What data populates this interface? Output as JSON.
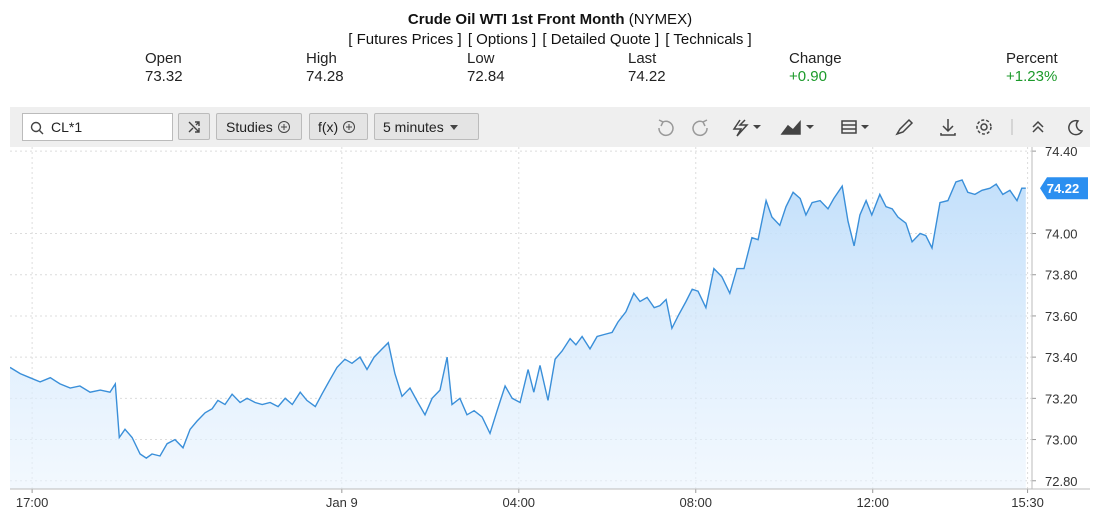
{
  "header": {
    "title": "Crude Oil WTI 1st Front Month",
    "exchange": "(NYMEX)",
    "links": [
      "[ Futures Prices ]",
      "[ Options ]",
      "[ Detailed Quote ]",
      "[ Technicals ]"
    ]
  },
  "quote": [
    {
      "label": "Open",
      "value": "73.32"
    },
    {
      "label": "High",
      "value": "74.28"
    },
    {
      "label": "Low",
      "value": "72.84"
    },
    {
      "label": "Last",
      "value": "74.22"
    },
    {
      "label": "Change",
      "value": "+0.90"
    },
    {
      "label": "Percent",
      "value": "+1.23%"
    }
  ],
  "toolbar": {
    "symbol": "CL*1",
    "studies": "Studies",
    "functions": "f(x)",
    "interval": "5 minutes"
  },
  "chart_data": {
    "type": "line",
    "color": "#3a8fd9",
    "grid": true,
    "xlim": [
      -0.5,
      22.6
    ],
    "ylim": [
      72.76,
      74.42
    ],
    "xticks": [
      {
        "value": 0,
        "label": "17:00"
      },
      {
        "value": 7,
        "label": "Jan 9"
      },
      {
        "value": 11,
        "label": "04:00"
      },
      {
        "value": 15,
        "label": "08:00"
      },
      {
        "value": 19,
        "label": "12:00"
      },
      {
        "value": 22.5,
        "label": "15:30"
      }
    ],
    "yticks": [
      {
        "value": 72.8,
        "label": "72.80"
      },
      {
        "value": 73,
        "label": "73.00"
      },
      {
        "value": 73.2,
        "label": "73.20"
      },
      {
        "value": 73.4,
        "label": "73.40"
      },
      {
        "value": 73.6,
        "label": "73.60"
      },
      {
        "value": 73.8,
        "label": "73.80"
      },
      {
        "value": 74,
        "label": "74.00"
      },
      {
        "value": 74.4,
        "label": "74.40"
      }
    ],
    "x": [
      -0.5,
      -0.27,
      -0.05,
      0.18,
      0.41,
      0.63,
      0.86,
      1.08,
      1.31,
      1.54,
      1.76,
      1.88,
      1.97,
      2.1,
      2.26,
      2.44,
      2.58,
      2.71,
      2.89,
      3.05,
      3.23,
      3.41,
      3.57,
      3.73,
      3.91,
      4.07,
      4.2,
      4.36,
      4.52,
      4.7,
      4.86,
      5.04,
      5.2,
      5.38,
      5.56,
      5.72,
      5.88,
      6.06,
      6.21,
      6.4,
      6.55,
      6.73,
      6.89,
      7.07,
      7.23,
      7.41,
      7.57,
      7.73,
      7.91,
      8.05,
      8.2,
      8.36,
      8.54,
      8.72,
      8.88,
      9.04,
      9.22,
      9.38,
      9.49,
      9.67,
      9.83,
      9.99,
      10.17,
      10.35,
      10.51,
      10.69,
      10.85,
      11.03,
      11.21,
      11.34,
      11.48,
      11.66,
      11.82,
      11.98,
      12.16,
      12.29,
      12.43,
      12.61,
      12.77,
      12.93,
      13.11,
      13.24,
      13.42,
      13.6,
      13.74,
      13.9,
      14.06,
      14.19,
      14.33,
      14.46,
      14.6,
      14.78,
      14.92,
      15.05,
      15.23,
      15.41,
      15.59,
      15.77,
      15.93,
      16.09,
      16.27,
      16.41,
      16.59,
      16.72,
      16.9,
      17.04,
      17.2,
      17.36,
      17.49,
      17.63,
      17.81,
      17.99,
      18.12,
      18.31,
      18.44,
      18.58,
      18.71,
      18.85,
      18.98,
      19.16,
      19.3,
      19.44,
      19.57,
      19.75,
      19.89,
      20.07,
      20.2,
      20.34,
      20.52,
      20.7,
      20.88,
      21.02,
      21.15,
      21.31,
      21.47,
      21.65,
      21.79,
      21.94,
      22.1,
      22.26,
      22.37,
      22.46
    ],
    "values": [
      73.35,
      73.32,
      73.3,
      73.28,
      73.3,
      73.27,
      73.25,
      73.26,
      73.23,
      73.24,
      73.23,
      73.27,
      73.01,
      73.05,
      73.01,
      72.93,
      72.91,
      72.93,
      72.92,
      72.98,
      73.0,
      72.96,
      73.05,
      73.09,
      73.13,
      73.15,
      73.19,
      73.17,
      73.22,
      73.18,
      73.2,
      73.18,
      73.17,
      73.18,
      73.16,
      73.2,
      73.17,
      73.23,
      73.19,
      73.16,
      73.22,
      73.29,
      73.35,
      73.39,
      73.37,
      73.4,
      73.34,
      73.4,
      73.44,
      73.47,
      73.32,
      73.21,
      73.25,
      73.18,
      73.12,
      73.2,
      73.24,
      73.4,
      73.17,
      73.2,
      73.12,
      73.14,
      73.11,
      73.03,
      73.14,
      73.26,
      73.2,
      73.18,
      73.34,
      73.23,
      73.36,
      73.19,
      73.39,
      73.43,
      73.49,
      73.46,
      73.5,
      73.44,
      73.5,
      73.51,
      73.52,
      73.57,
      73.62,
      73.71,
      73.67,
      73.69,
      73.64,
      73.65,
      73.68,
      73.54,
      73.6,
      73.67,
      73.73,
      73.72,
      73.64,
      73.83,
      73.79,
      73.71,
      73.83,
      73.83,
      73.98,
      73.97,
      74.16,
      74.08,
      74.04,
      74.13,
      74.2,
      74.17,
      74.09,
      74.15,
      74.16,
      74.12,
      74.17,
      74.23,
      74.06,
      73.94,
      74.09,
      74.16,
      74.09,
      74.19,
      74.13,
      74.12,
      74.08,
      74.05,
      73.96,
      74.0,
      73.99,
      73.93,
      74.15,
      74.16,
      74.25,
      74.26,
      74.2,
      74.19,
      74.21,
      74.22,
      74.24,
      74.19,
      74.21,
      74.16,
      74.22,
      74.22
    ]
  }
}
